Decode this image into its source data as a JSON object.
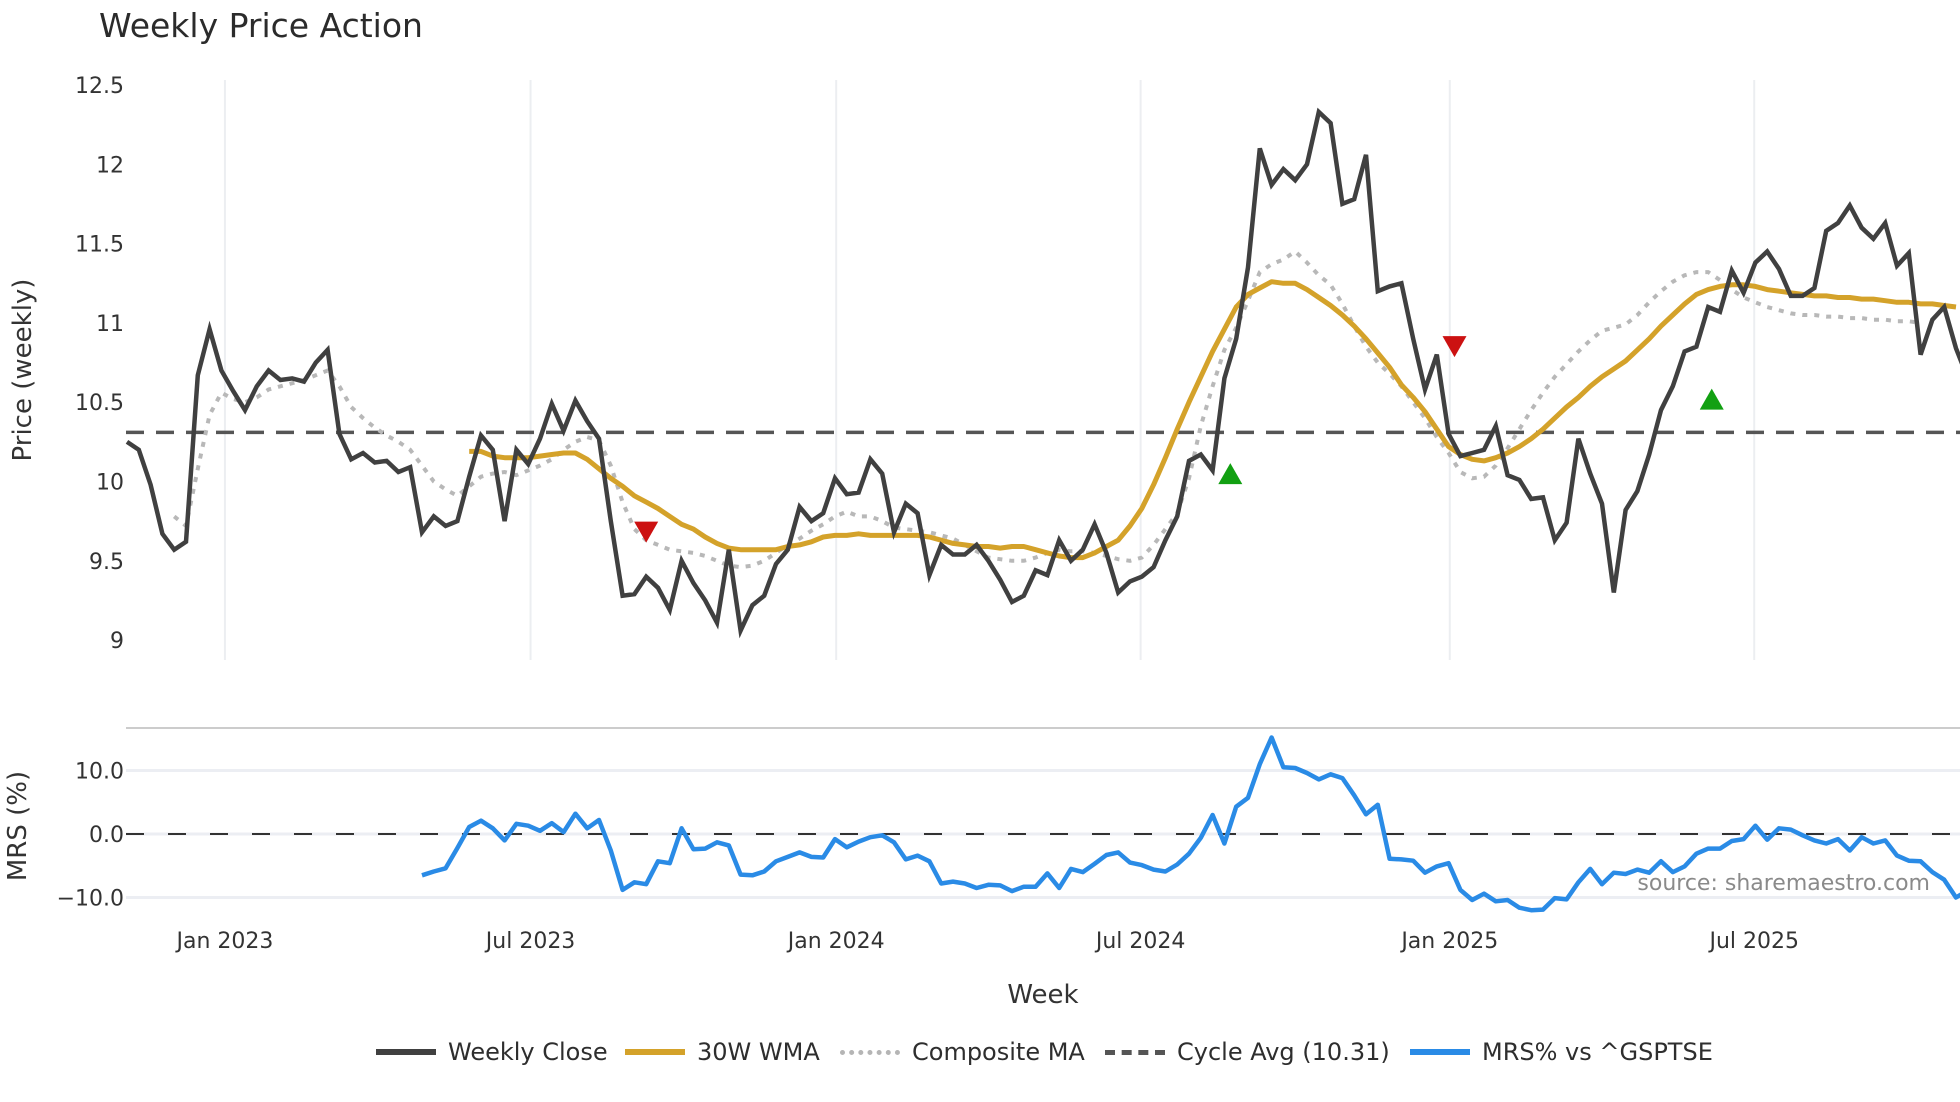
{
  "title": "Weekly Price Action",
  "source_label": "source: sharemaestro.com",
  "axes": {
    "price_ylabel": "Price (weekly)",
    "mrs_ylabel": "MRS (%)",
    "xlabel": "Week",
    "price_yticks": [
      "12.5",
      "12",
      "11.5",
      "11",
      "10.5",
      "10",
      "9.5",
      "9"
    ],
    "mrs_yticks": [
      "10.0",
      "0.0",
      "−10.0"
    ],
    "xticks": [
      "Jan 2023",
      "Jul 2023",
      "Jan 2024",
      "Jul 2024",
      "Jan 2025",
      "Jul 2025"
    ]
  },
  "legend": [
    {
      "label": "Weekly Close",
      "color": "#404040",
      "style": "solid"
    },
    {
      "label": "30W WMA",
      "color": "#d4a22a",
      "style": "solid"
    },
    {
      "label": "Composite MA",
      "color": "#b5b5b5",
      "style": "dotted"
    },
    {
      "label": "Cycle Avg (10.31)",
      "color": "#555555",
      "style": "dashed"
    },
    {
      "label": "MRS% vs ^GSPTSE",
      "color": "#2a8be6",
      "style": "solid"
    }
  ],
  "chart_data": [
    {
      "type": "line",
      "title": "Weekly Price Action",
      "xlabel": "",
      "ylabel": "Price (weekly)",
      "ylim": [
        8.9,
        12.55
      ],
      "x_tick_labels": [
        "Jan 2023",
        "Jul 2023",
        "Jan 2024",
        "Jul 2024",
        "Jan 2025",
        "Jul 2025"
      ],
      "x_tick_week_index": [
        8.3,
        34.2,
        60.1,
        85.9,
        112.1,
        137.9
      ],
      "grid": "vertical",
      "legend_position": "bottom",
      "cycle_avg": 10.31,
      "series": [
        {
          "name": "Weekly Close",
          "start_index": 0,
          "values": [
            10.25,
            10.2,
            9.98,
            9.67,
            9.57,
            9.62,
            10.67,
            10.96,
            10.7,
            10.57,
            10.45,
            10.6,
            10.7,
            10.64,
            10.65,
            10.63,
            10.75,
            10.83,
            10.3,
            10.14,
            10.18,
            10.12,
            10.13,
            10.06,
            10.09,
            9.68,
            9.78,
            9.72,
            9.75,
            10.03,
            10.29,
            10.2,
            9.75,
            10.2,
            10.11,
            10.27,
            10.49,
            10.32,
            10.51,
            10.38,
            10.27,
            9.75,
            9.28,
            9.29,
            9.4,
            9.33,
            9.19,
            9.5,
            9.36,
            9.25,
            9.11,
            9.57,
            9.06,
            9.22,
            9.28,
            9.48,
            9.57,
            9.84,
            9.75,
            9.8,
            10.02,
            9.92,
            9.93,
            10.14,
            10.05,
            9.68,
            9.86,
            9.8,
            9.41,
            9.6,
            9.54,
            9.54,
            9.6,
            9.5,
            9.38,
            9.24,
            9.28,
            9.44,
            9.41,
            9.63,
            9.5,
            9.57,
            9.73,
            9.55,
            9.3,
            9.37,
            9.4,
            9.46,
            9.63,
            9.78,
            10.13,
            10.17,
            10.07,
            10.65,
            10.9,
            11.35,
            12.1,
            11.87,
            11.97,
            11.9,
            12.0,
            12.33,
            12.26,
            11.75,
            11.78,
            12.06,
            11.2,
            11.23,
            11.25,
            10.9,
            10.58,
            10.8,
            10.3,
            10.16,
            10.18,
            10.2,
            10.35,
            10.04,
            10.01,
            9.89,
            9.9,
            9.63,
            9.74,
            10.27,
            10.05,
            9.86,
            9.3,
            9.82,
            9.94,
            10.17,
            10.45,
            10.6,
            10.82,
            10.85,
            11.1,
            11.07,
            11.33,
            11.19,
            11.38,
            11.45,
            11.34,
            11.17,
            11.17,
            11.22,
            11.58,
            11.63,
            11.74,
            11.6,
            11.53,
            11.63,
            11.36,
            11.44,
            10.8,
            11.02,
            11.1,
            10.84,
            10.65
          ]
        },
        {
          "name": "30W WMA",
          "start_index": 29,
          "values": [
            10.19,
            10.19,
            10.16,
            10.15,
            10.15,
            10.15,
            10.16,
            10.17,
            10.18,
            10.18,
            10.14,
            10.08,
            10.02,
            9.97,
            9.91,
            9.87,
            9.83,
            9.78,
            9.73,
            9.7,
            9.65,
            9.61,
            9.58,
            9.57,
            9.57,
            9.57,
            9.57,
            9.59,
            9.6,
            9.62,
            9.65,
            9.66,
            9.66,
            9.67,
            9.66,
            9.66,
            9.66,
            9.66,
            9.66,
            9.65,
            9.63,
            9.61,
            9.6,
            9.59,
            9.59,
            9.58,
            9.59,
            9.59,
            9.57,
            9.55,
            9.53,
            9.52,
            9.52,
            9.55,
            9.59,
            9.63,
            9.72,
            9.83,
            9.98,
            10.15,
            10.33,
            10.5,
            10.66,
            10.82,
            10.96,
            11.1,
            11.18,
            11.22,
            11.26,
            11.25,
            11.25,
            11.21,
            11.16,
            11.11,
            11.05,
            10.98,
            10.9,
            10.81,
            10.72,
            10.61,
            10.53,
            10.44,
            10.33,
            10.22,
            10.17,
            10.14,
            10.13,
            10.15,
            10.18,
            10.22,
            10.27,
            10.33,
            10.4,
            10.47,
            10.53,
            10.6,
            10.66,
            10.71,
            10.76,
            10.83,
            10.9,
            10.98,
            11.05,
            11.12,
            11.18,
            11.21,
            11.23,
            11.24,
            11.24,
            11.23,
            11.21,
            11.2,
            11.19,
            11.18,
            11.17,
            11.17,
            11.16,
            11.16,
            11.15,
            11.15,
            11.14,
            11.13,
            11.13,
            11.12,
            11.12,
            11.11,
            11.1
          ]
        },
        {
          "name": "Composite MA",
          "start_index": 4,
          "values": [
            9.78,
            9.72,
            10.08,
            10.42,
            10.56,
            10.52,
            10.5,
            10.53,
            10.58,
            10.6,
            10.62,
            10.64,
            10.67,
            10.7,
            10.6,
            10.47,
            10.4,
            10.34,
            10.29,
            10.25,
            10.2,
            10.1,
            10.0,
            9.95,
            9.91,
            9.97,
            10.03,
            10.05,
            10.06,
            10.04,
            10.07,
            10.1,
            10.14,
            10.2,
            10.25,
            10.28,
            10.26,
            10.1,
            9.87,
            9.7,
            9.63,
            9.6,
            9.57,
            9.56,
            9.55,
            9.53,
            9.5,
            9.47,
            9.46,
            9.47,
            9.5,
            9.55,
            9.6,
            9.64,
            9.69,
            9.73,
            9.78,
            9.81,
            9.78,
            9.78,
            9.75,
            9.71,
            9.7,
            9.69,
            9.68,
            9.66,
            9.64,
            9.6,
            9.56,
            9.52,
            9.51,
            9.5,
            9.5,
            9.52,
            9.55,
            9.57,
            9.56,
            9.56,
            9.55,
            9.53,
            9.51,
            9.5,
            9.52,
            9.6,
            9.7,
            9.8,
            10.02,
            10.35,
            10.6,
            10.83,
            10.97,
            11.14,
            11.32,
            11.37,
            11.4,
            11.45,
            11.38,
            11.3,
            11.24,
            11.12,
            10.98,
            10.85,
            10.75,
            10.68,
            10.6,
            10.5,
            10.4,
            10.28,
            10.18,
            10.06,
            10.02,
            10.03,
            10.1,
            10.21,
            10.33,
            10.45,
            10.56,
            10.66,
            10.74,
            10.82,
            10.89,
            10.95,
            10.97,
            10.99,
            11.05,
            11.13,
            11.2,
            11.26,
            11.3,
            11.32,
            11.32,
            11.27,
            11.21,
            11.16,
            11.13,
            11.1,
            11.08,
            11.06,
            11.05,
            11.05,
            11.04,
            11.04,
            11.03,
            11.03,
            11.02,
            11.02,
            11.01,
            11.01,
            11.0
          ]
        },
        {
          "name": "Cycle Avg (10.31)",
          "values": [
            10.31
          ]
        }
      ],
      "markers": [
        {
          "type": "sell",
          "shape": "triangle-down",
          "color": "#cc1111",
          "week_index": 44,
          "value": 9.69
        },
        {
          "type": "buy",
          "shape": "triangle-up",
          "color": "#12a012",
          "week_index": 93.5,
          "value": 10.04
        },
        {
          "type": "sell",
          "shape": "triangle-down",
          "color": "#cc1111",
          "week_index": 112.5,
          "value": 10.86
        },
        {
          "type": "buy",
          "shape": "triangle-up",
          "color": "#12a012",
          "week_index": 134.3,
          "value": 10.51
        }
      ]
    },
    {
      "type": "line",
      "title": "",
      "xlabel": "Week",
      "ylabel": "MRS (%)",
      "ylim": [
        -12.5,
        15
      ],
      "x_tick_labels": [
        "Jan 2023",
        "Jul 2023",
        "Jan 2024",
        "Jul 2024",
        "Jan 2025",
        "Jul 2025"
      ],
      "reference_line": 0.0,
      "series": [
        {
          "name": "MRS% vs ^GSPTSE",
          "start_index": 25,
          "values": [
            -6.5,
            -5.9,
            -5.4,
            -2.2,
            1.1,
            2.1,
            0.9,
            -1.0,
            1.6,
            1.3,
            0.5,
            1.7,
            0.3,
            3.2,
            0.9,
            2.2,
            -2.6,
            -8.8,
            -7.6,
            -7.9,
            -4.3,
            -4.6,
            0.9,
            -2.4,
            -2.3,
            -1.3,
            -1.8,
            -6.4,
            -6.5,
            -5.9,
            -4.3,
            -3.6,
            -2.9,
            -3.6,
            -3.7,
            -0.8,
            -2.1,
            -1.2,
            -0.5,
            -0.2,
            -1.3,
            -4.0,
            -3.4,
            -4.3,
            -7.8,
            -7.5,
            -7.8,
            -8.5,
            -8.0,
            -8.1,
            -9.0,
            -8.3,
            -8.3,
            -6.2,
            -8.5,
            -5.5,
            -6.0,
            -4.7,
            -3.3,
            -2.9,
            -4.5,
            -4.9,
            -5.6,
            -5.9,
            -4.8,
            -3.1,
            -0.6,
            3.0,
            -1.5,
            4.3,
            5.7,
            11.0,
            15.2,
            10.5,
            10.4,
            9.6,
            8.6,
            9.4,
            8.8,
            6.1,
            3.1,
            4.6,
            -3.9,
            -4.0,
            -4.2,
            -6.1,
            -5.1,
            -4.6,
            -8.8,
            -10.4,
            -9.4,
            -10.6,
            -10.4,
            -11.6,
            -12.0,
            -11.9,
            -10.1,
            -10.3,
            -7.6,
            -5.5,
            -7.9,
            -6.1,
            -6.3,
            -5.6,
            -6.1,
            -4.3,
            -6.0,
            -5.1,
            -3.1,
            -2.3,
            -2.3,
            -1.1,
            -0.8,
            1.3,
            -0.9,
            0.9,
            0.7,
            -0.2,
            -1.0,
            -1.5,
            -0.8,
            -2.6,
            -0.5,
            -1.5,
            -1.0,
            -3.4,
            -4.2,
            -4.3,
            -6.0,
            -7.2,
            -10.0,
            -8.9,
            -8.8,
            -10.3
          ]
        }
      ],
      "source_annotation": "source: sharemaestro.com"
    }
  ]
}
